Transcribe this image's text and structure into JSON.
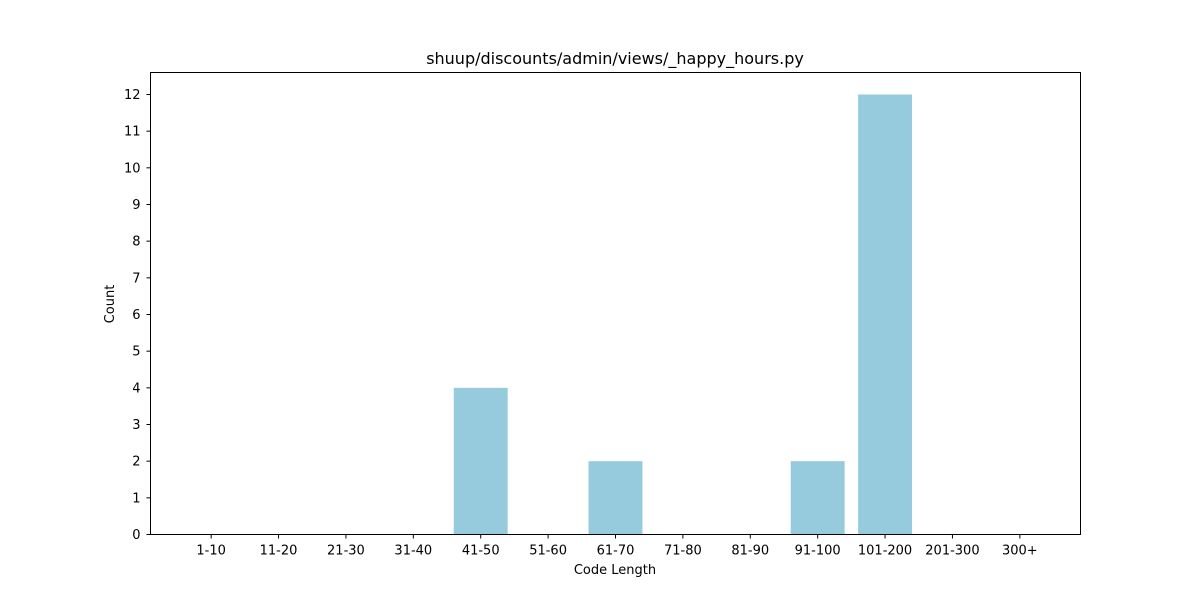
{
  "chart_data": {
    "type": "bar",
    "title": "shuup/discounts/admin/views/_happy_hours.py",
    "xlabel": "Code Length",
    "ylabel": "Count",
    "categories": [
      "1-10",
      "11-20",
      "21-30",
      "31-40",
      "41-50",
      "51-60",
      "61-70",
      "71-80",
      "81-90",
      "91-100",
      "101-200",
      "201-300",
      "300+"
    ],
    "values": [
      0,
      0,
      0,
      0,
      4,
      0,
      2,
      0,
      0,
      2,
      12,
      0,
      0
    ],
    "ylim": [
      0,
      12.6
    ],
    "yticks": [
      0,
      1,
      2,
      3,
      4,
      5,
      6,
      7,
      8,
      9,
      10,
      11,
      12
    ],
    "bar_color": "#96cadd",
    "grid": false,
    "legend": "none"
  }
}
